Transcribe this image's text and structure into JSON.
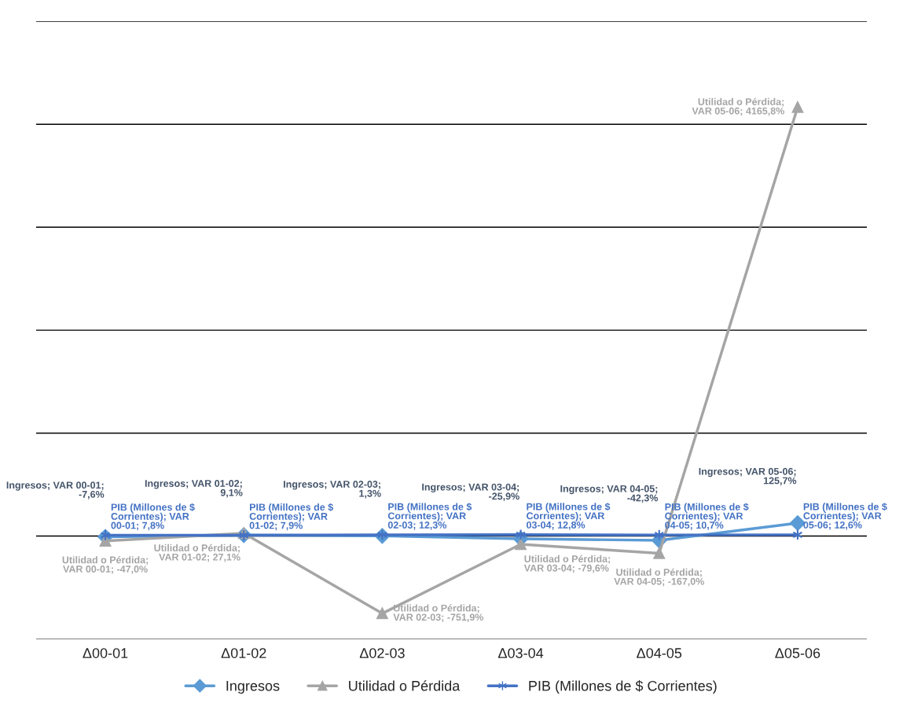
{
  "chart_data": {
    "type": "line",
    "categories": [
      "Δ00-01",
      "Δ01-02",
      "Δ02-03",
      "Δ03-04",
      "Δ04-05",
      "Δ05-06"
    ],
    "series": [
      {
        "name": "Ingresos",
        "color": "#5b9bd5",
        "marker": "diamond",
        "values": [
          -7.6,
          9.1,
          1.3,
          -25.9,
          -42.3,
          125.7
        ],
        "value_labels": [
          "Ingresos; VAR 00-01; -7,6%",
          "Ingresos; VAR 01-02; 9,1%",
          "Ingresos; VAR 02-03; 1,3%",
          "Ingresos; VAR 03-04; -25,9%",
          "Ingresos; VAR 04-05; -42,3%",
          "Ingresos; VAR 05-06; 125,7%"
        ]
      },
      {
        "name": "Utilidad o Pérdida",
        "color": "#a5a5a5",
        "marker": "triangle",
        "values": [
          -47.0,
          27.1,
          -751.9,
          -79.6,
          -167.0,
          4165.8
        ],
        "value_labels": [
          "Utilidad o Pérdida; VAR 00-01; -47,0%",
          "Utilidad o Pérdida; VAR 01-02; 27,1%",
          "Utilidad o Pérdida; VAR 02-03; -751,9%",
          "Utilidad o Pérdida; VAR 03-04; -79,6%",
          "Utilidad o Pérdida; VAR 04-05; -167,0%",
          "Utilidad o Pérdida; VAR 05-06; 4165,8%"
        ]
      },
      {
        "name": "PIB (Millones de $ Corrientes)",
        "color": "#4472c4",
        "marker": "cross",
        "values": [
          7.8,
          7.9,
          12.3,
          12.8,
          10.7,
          12.6
        ],
        "value_labels": [
          "PIB (Millones de $ Corrientes); VAR 00-01; 7,8%",
          "PIB (Millones de $ Corrientes); VAR 01-02; 7,9%",
          "PIB (Millones de $ Corrientes); VAR 02-03; 12,3%",
          "PIB (Millones de $ Corrientes); VAR 03-04; 12,8%",
          "PIB (Millones de $ Corrientes); VAR 04-05; 10,7%",
          "PIB (Millones de $ Corrientes); VAR 05-06; 12,6%"
        ]
      }
    ],
    "data_labels": true,
    "tick_labels": "x",
    "grid": "y",
    "legend": "bottom"
  }
}
